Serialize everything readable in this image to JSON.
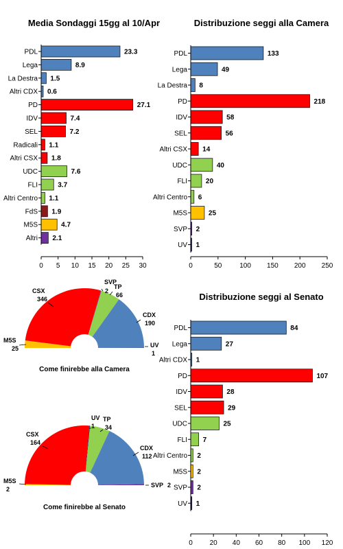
{
  "colors": {
    "blue": "#4f81bd",
    "red": "#ff0000",
    "green": "#92d050",
    "darkred": "#8b1a1a",
    "yellow": "#ffc000",
    "purple": "#7030a0",
    "navy": "#1f1f5f"
  },
  "chart_data": [
    {
      "id": "sondaggi",
      "type": "bar",
      "orientation": "horizontal",
      "title": "Media Sondaggi 15gg al 10/Apr",
      "categories": [
        "PDL",
        "Lega",
        "La Destra",
        "Altri CDX",
        "PD",
        "IDV",
        "SEL",
        "Radicali",
        "Altri CSX",
        "UDC",
        "FLI",
        "Altri Centro",
        "FdS",
        "M5S",
        "Altri"
      ],
      "values": [
        23.3,
        8.9,
        1.5,
        0.6,
        27.1,
        7.4,
        7.2,
        1.1,
        1.8,
        7.6,
        3.7,
        1.1,
        1.9,
        4.7,
        2.1
      ],
      "value_labels": [
        "23.3",
        "8.9",
        "1.5",
        "0.6",
        "27.1",
        "7.4",
        "7.2",
        "1.1",
        "1.8",
        "7.6",
        "3.7",
        "1.1",
        "1.9",
        "4.7",
        "2.1"
      ],
      "bar_colors": [
        "blue",
        "blue",
        "blue",
        "blue",
        "red",
        "red",
        "red",
        "red",
        "red",
        "green",
        "green",
        "green",
        "darkred",
        "yellow",
        "purple"
      ],
      "xlim": [
        0,
        30
      ],
      "xticks": [
        0,
        5,
        10,
        15,
        20,
        25,
        30
      ],
      "xtick_labels": [
        "0",
        "5",
        "10",
        "15",
        "20",
        "25",
        "30"
      ]
    },
    {
      "id": "seggi-camera",
      "type": "bar",
      "orientation": "horizontal",
      "title": "Distribuzione seggi alla Camera",
      "categories": [
        "PDL",
        "Lega",
        "La Destra",
        "PD",
        "IDV",
        "SEL",
        "Altri CSX",
        "UDC",
        "FLI",
        "Altri Centro",
        "M5S",
        "SVP",
        "UV"
      ],
      "values": [
        133,
        49,
        8,
        218,
        58,
        56,
        14,
        40,
        20,
        6,
        25,
        2,
        1
      ],
      "value_labels": [
        "133",
        "49",
        "8",
        "218",
        "58",
        "56",
        "14",
        "40",
        "20",
        "6",
        "25",
        "2",
        "1"
      ],
      "bar_colors": [
        "blue",
        "blue",
        "blue",
        "red",
        "red",
        "red",
        "red",
        "green",
        "green",
        "green",
        "yellow",
        "purple",
        "navy"
      ],
      "xlim": [
        0,
        250
      ],
      "xticks": [
        0,
        50,
        100,
        150,
        200,
        250
      ],
      "xtick_labels": [
        "0",
        "50",
        "100",
        "150",
        "200",
        "250"
      ]
    },
    {
      "id": "seggi-senato",
      "type": "bar",
      "orientation": "horizontal",
      "title": "Distribuzione seggi al Senato",
      "categories": [
        "PDL",
        "Lega",
        "Altri CDX",
        "PD",
        "IDV",
        "SEL",
        "UDC",
        "FLI",
        "Altri Centro",
        "M5S",
        "SVP",
        "UV"
      ],
      "values": [
        84,
        27,
        1,
        107,
        28,
        29,
        25,
        7,
        2,
        2,
        2,
        1
      ],
      "value_labels": [
        "84",
        "27",
        "1",
        "107",
        "28",
        "29",
        "25",
        "7",
        "2",
        "2",
        "2",
        "1"
      ],
      "bar_colors": [
        "blue",
        "blue",
        "blue",
        "red",
        "red",
        "red",
        "green",
        "green",
        "green",
        "yellow",
        "purple",
        "navy"
      ],
      "xlim": [
        0,
        120
      ],
      "xticks": [
        0,
        20,
        40,
        60,
        80,
        100,
        120
      ],
      "xtick_labels": [
        "0",
        "20",
        "40",
        "60",
        "80",
        "100",
        "120"
      ]
    },
    {
      "id": "parlamento-camera",
      "type": "pie",
      "shape": "semicircle-donut",
      "title": "Come finirebbe alla Camera",
      "slices": [
        {
          "name": "M5S",
          "value": 25,
          "label": "25",
          "color": "yellow"
        },
        {
          "name": "CSX",
          "value": 346,
          "label": "346",
          "color": "red"
        },
        {
          "name": "SVP",
          "value": 2,
          "label": "2",
          "color": "purple"
        },
        {
          "name": "TP",
          "value": 66,
          "label": "66",
          "color": "green"
        },
        {
          "name": "CDX",
          "value": 190,
          "label": "190",
          "color": "blue"
        },
        {
          "name": "UV",
          "value": 1,
          "label": "1",
          "color": "navy"
        }
      ]
    },
    {
      "id": "parlamento-senato",
      "type": "pie",
      "shape": "semicircle-donut",
      "title": "Come finirebbe al Senato",
      "slices": [
        {
          "name": "M5S",
          "value": 2,
          "label": "2",
          "color": "yellow"
        },
        {
          "name": "CSX",
          "value": 164,
          "label": "164",
          "color": "red"
        },
        {
          "name": "UV",
          "value": 1,
          "label": "1",
          "color": "navy"
        },
        {
          "name": "TP",
          "value": 34,
          "label": "34",
          "color": "green"
        },
        {
          "name": "CDX",
          "value": 112,
          "label": "112",
          "color": "blue"
        },
        {
          "name": "SVP",
          "value": 2,
          "label": "2",
          "color": "purple"
        }
      ]
    }
  ]
}
